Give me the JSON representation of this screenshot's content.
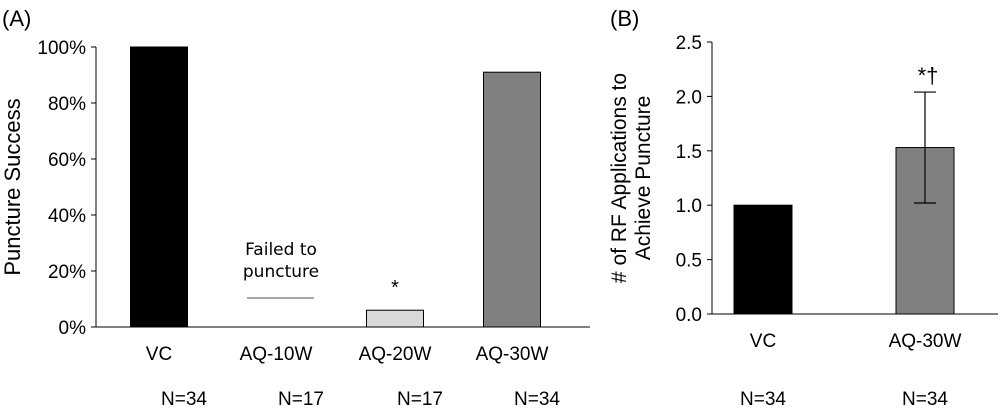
{
  "chart_data": [
    {
      "panel_label": "(A)",
      "type": "bar",
      "ylabel": "Puncture Success",
      "ylim": [
        0,
        100
      ],
      "yticks": [
        "0%",
        "20%",
        "40%",
        "60%",
        "80%",
        "100%"
      ],
      "ytick_values": [
        0,
        20,
        40,
        60,
        80,
        100
      ],
      "categories": [
        "VC",
        "AQ-10W",
        "AQ-20W",
        "AQ-30W"
      ],
      "values": [
        100,
        0,
        6,
        91
      ],
      "bar_colors": [
        "#000000",
        "#ffffff",
        "#d9d9d9",
        "#808080"
      ],
      "significance": [
        "",
        "",
        "*",
        ""
      ],
      "annotations": [
        {
          "category": "AQ-10W",
          "text_line1": "Failed to",
          "text_line2": "puncture"
        }
      ],
      "n_labels": [
        "N=34",
        "N=17",
        "N=17",
        "N=34"
      ],
      "grid": false
    },
    {
      "panel_label": "(B)",
      "type": "bar",
      "ylabel_line1": "# of RF Applications to",
      "ylabel_line2": "Achieve Puncture",
      "ylim": [
        0,
        2.5
      ],
      "yticks": [
        "0.0",
        "0.5",
        "1.0",
        "1.5",
        "2.0",
        "2.5"
      ],
      "ytick_values": [
        0,
        0.5,
        1.0,
        1.5,
        2.0,
        2.5
      ],
      "categories": [
        "VC",
        "AQ-30W"
      ],
      "values": [
        1.0,
        1.53
      ],
      "error": [
        0,
        0.51
      ],
      "bar_colors": [
        "#000000",
        "#808080"
      ],
      "significance": [
        "",
        "*†"
      ],
      "n_labels": [
        "N=34",
        "N=34"
      ],
      "grid": false
    }
  ]
}
